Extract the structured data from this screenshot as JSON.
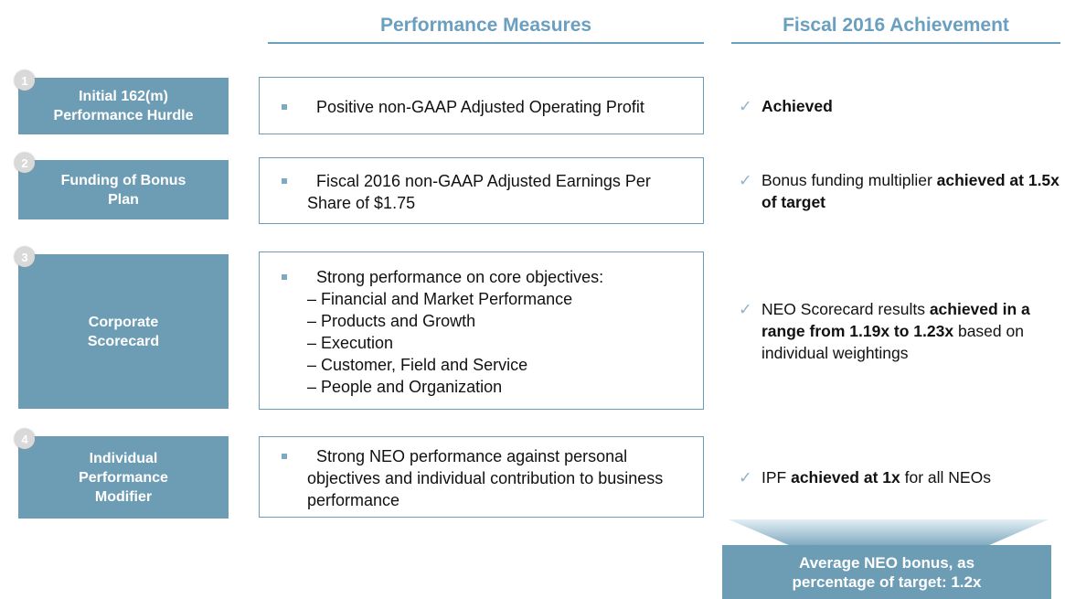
{
  "header": {
    "measures": "Performance Measures",
    "achievement": "Fiscal 2016 Achievement"
  },
  "rows": [
    {
      "number": "1",
      "label": [
        "Initial 162(m)",
        "Performance Hurdle"
      ],
      "measure": "Positive non-GAAP Adjusted Operating Profit",
      "sub_items": [],
      "achievement": [
        {
          "text": "Achieved",
          "bold": true
        }
      ]
    },
    {
      "number": "2",
      "label": [
        "Funding of Bonus",
        "Plan"
      ],
      "measure": "Fiscal 2016 non-GAAP Adjusted Earnings Per Share of $1.75",
      "sub_items": [],
      "achievement": [
        {
          "text": "Bonus funding multiplier ",
          "bold": false
        },
        {
          "text": "achieved at 1.5x of target",
          "bold": true
        }
      ]
    },
    {
      "number": "3",
      "label": [
        "Corporate",
        "Scorecard"
      ],
      "measure": "Strong performance on core objectives:",
      "sub_items": [
        "– Financial and Market Performance",
        "– Products and Growth",
        "– Execution",
        "– Customer, Field and Service",
        "– People and Organization"
      ],
      "achievement": [
        {
          "text": "NEO Scorecard results ",
          "bold": false
        },
        {
          "text": "achieved in a range from 1.19x to 1.23x",
          "bold": true
        },
        {
          "text": " based on individual weightings",
          "bold": false
        }
      ]
    },
    {
      "number": "4",
      "label": [
        "Individual",
        "Performance",
        "Modifier"
      ],
      "measure": "Strong NEO performance against personal objectives and individual contribution to business performance",
      "sub_items": [],
      "achievement": [
        {
          "text": "IPF ",
          "bold": false
        },
        {
          "text": "achieved at 1x",
          "bold": true
        },
        {
          "text": " for all NEOs",
          "bold": false
        }
      ]
    }
  ],
  "check": "✓",
  "result": "Average NEO bonus, as percentage of target: 1.2x"
}
